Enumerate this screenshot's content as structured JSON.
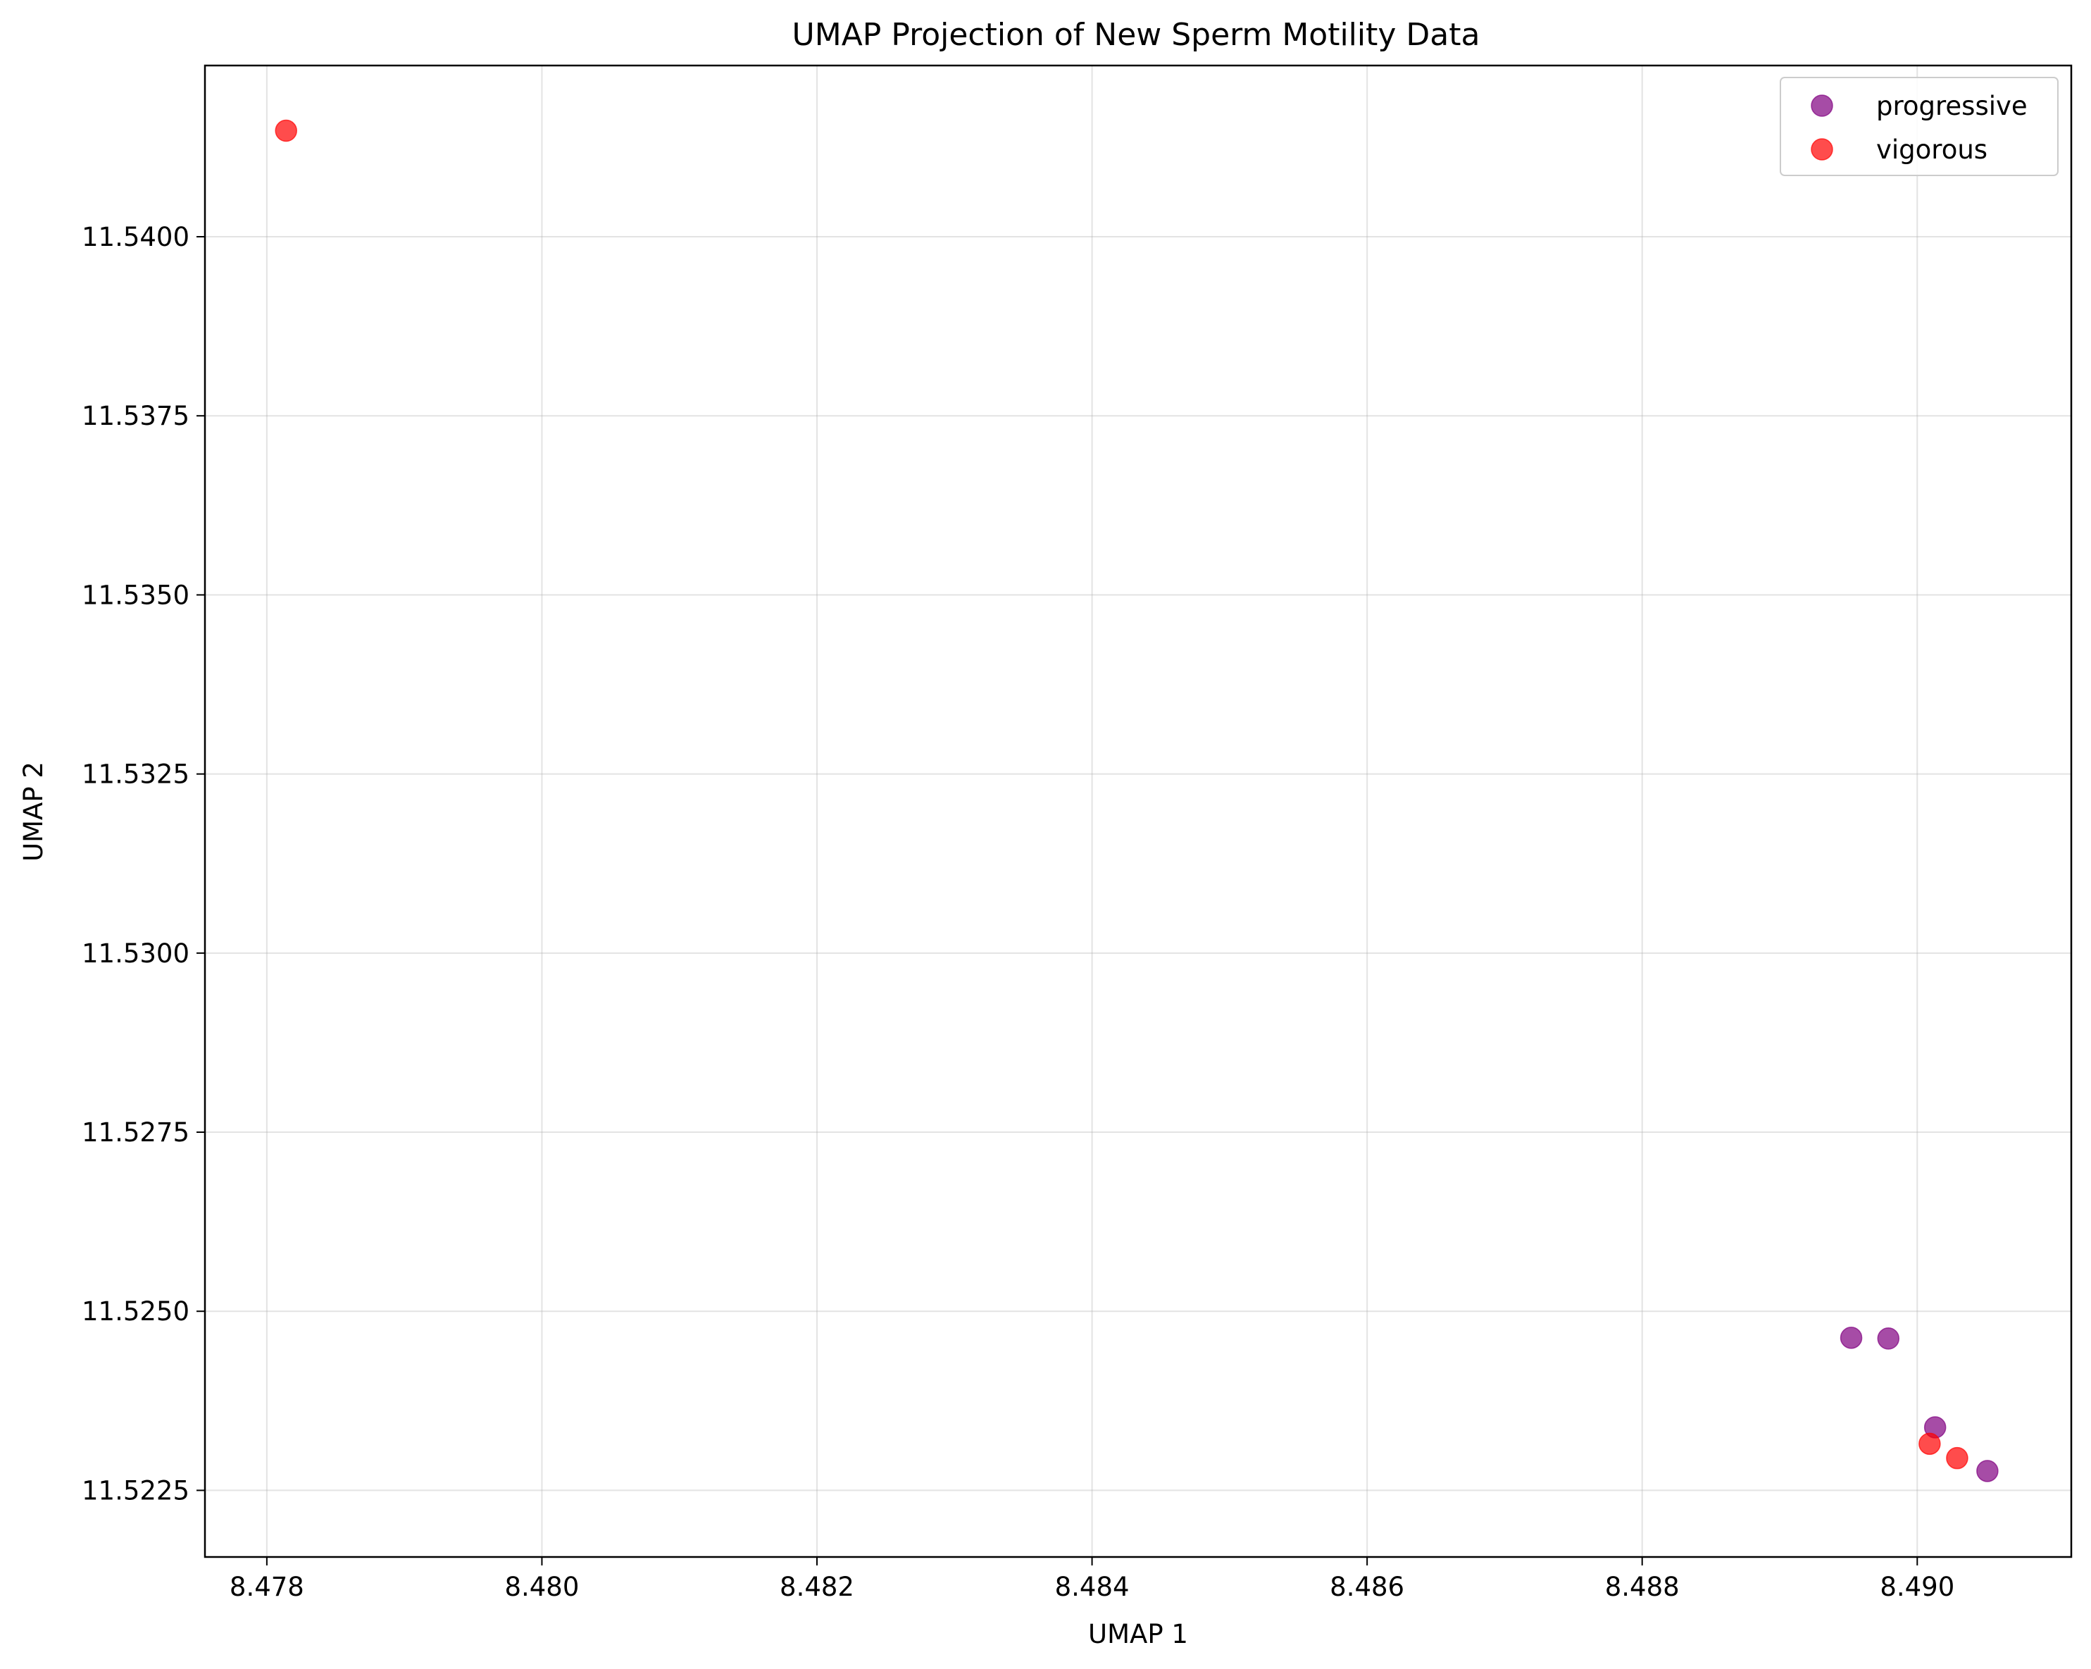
{
  "chart_data": {
    "type": "scatter",
    "title": "UMAP Projection of New Sperm Motility Data",
    "xlabel": "UMAP 1",
    "ylabel": "UMAP 2",
    "xlim": [
      8.47755,
      8.49112
    ],
    "ylim": [
      11.52157,
      11.54239
    ],
    "xticks": [
      8.478,
      8.48,
      8.482,
      8.484,
      8.486,
      8.488,
      8.49
    ],
    "xtick_labels": [
      "8.478",
      "8.480",
      "8.482",
      "8.484",
      "8.486",
      "8.488",
      "8.490"
    ],
    "yticks": [
      11.5225,
      11.525,
      11.5275,
      11.53,
      11.5325,
      11.535,
      11.5375,
      11.54
    ],
    "ytick_labels": [
      "11.5225",
      "11.5250",
      "11.5275",
      "11.5300",
      "11.5325",
      "11.5350",
      "11.5375",
      "11.5400"
    ],
    "grid": true,
    "legend_position": "top-right",
    "series": [
      {
        "name": "progressive",
        "color": "#800080",
        "points": [
          {
            "x": 8.48952,
            "y": 11.52463
          },
          {
            "x": 8.48979,
            "y": 11.52462
          },
          {
            "x": 8.49013,
            "y": 11.52338
          },
          {
            "x": 8.49051,
            "y": 11.52277
          }
        ]
      },
      {
        "name": "vigorous",
        "color": "#ff0000",
        "points": [
          {
            "x": 8.47814,
            "y": 11.54148
          },
          {
            "x": 8.49009,
            "y": 11.52315
          },
          {
            "x": 8.49029,
            "y": 11.52295
          }
        ]
      }
    ]
  }
}
